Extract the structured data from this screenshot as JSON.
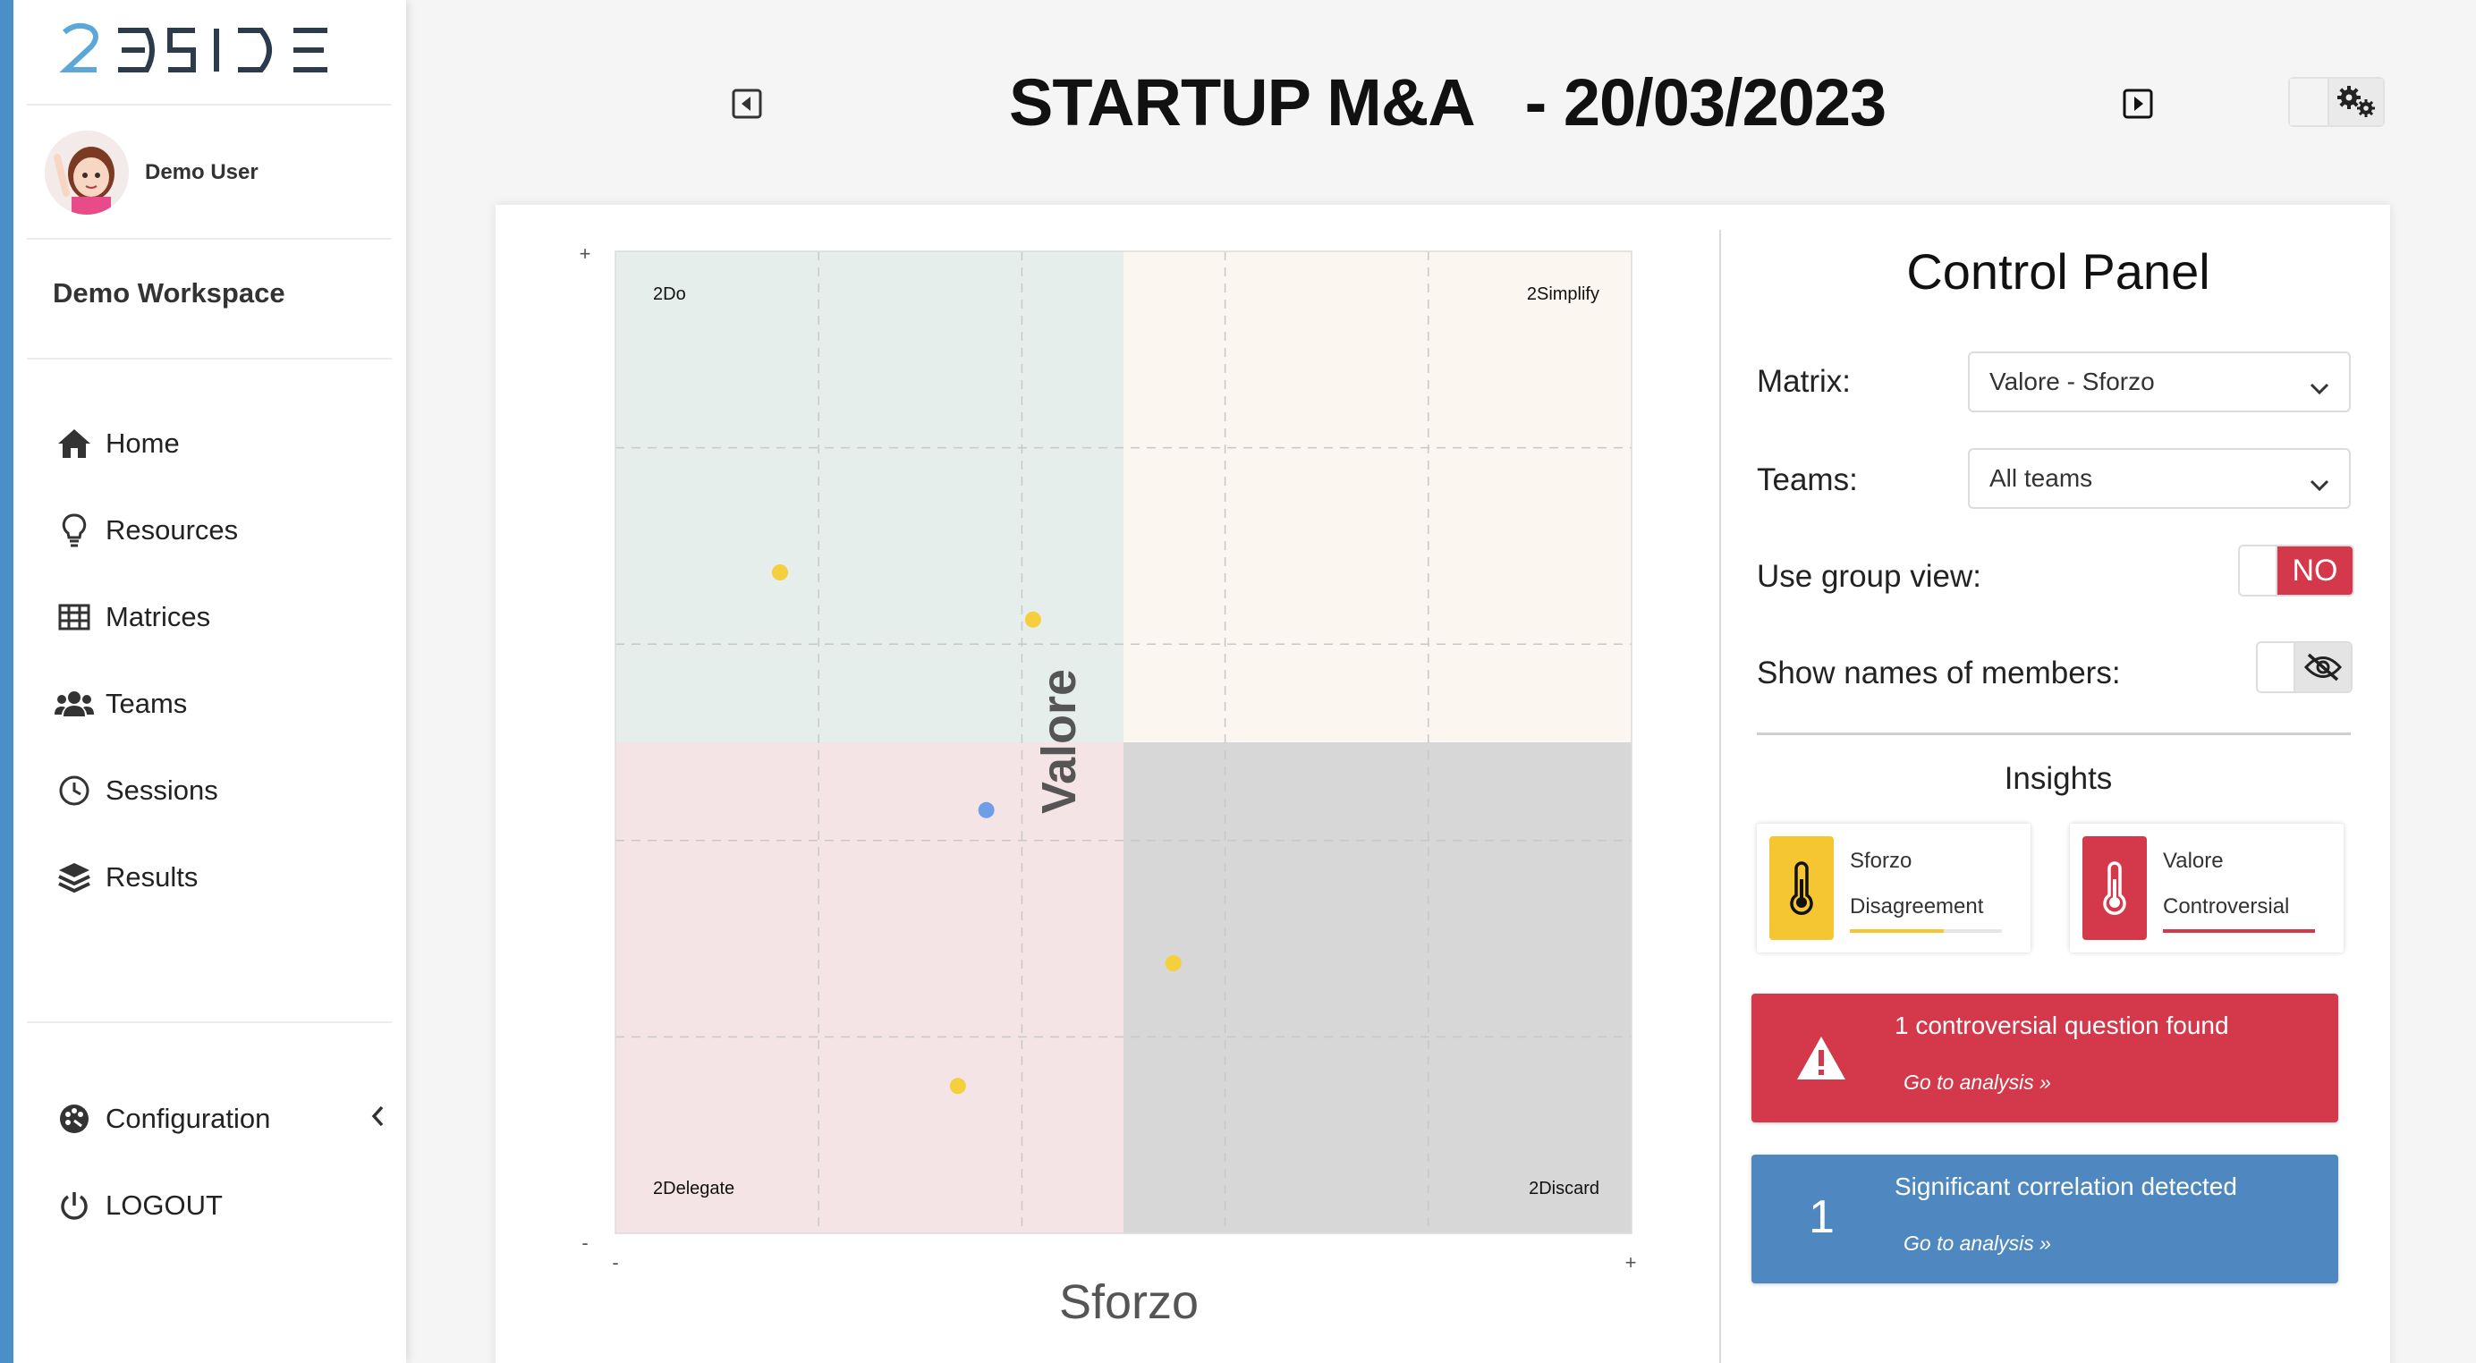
{
  "app": {
    "logo_text": "2DSIDE",
    "user_name": "Demo User",
    "workspace": "Demo Workspace"
  },
  "nav": {
    "items": [
      {
        "label": "Home",
        "icon": "home-icon"
      },
      {
        "label": "Resources",
        "icon": "lightbulb-icon"
      },
      {
        "label": "Matrices",
        "icon": "table-icon"
      },
      {
        "label": "Teams",
        "icon": "users-icon"
      },
      {
        "label": "Sessions",
        "icon": "clock-icon"
      },
      {
        "label": "Results",
        "icon": "layers-icon"
      }
    ],
    "configuration": "Configuration",
    "logout": "LOGOUT"
  },
  "header": {
    "title": "STARTUP M&A   - 20/03/2023"
  },
  "chart_data": {
    "type": "scatter",
    "xlabel": "Sforzo",
    "ylabel": "Valore",
    "x_min_label": "-",
    "x_max_label": "+",
    "y_min_label": "-",
    "y_max_label": "+",
    "xlim": [
      0,
      1
    ],
    "ylim": [
      0,
      1
    ],
    "grid": true,
    "quadrants": [
      {
        "label": "2Do",
        "position": "top-left",
        "color": "#e5eeeb"
      },
      {
        "label": "2Simplify",
        "position": "top-right",
        "color": "#fbf6f0"
      },
      {
        "label": "2Delegate",
        "position": "bottom-left",
        "color": "#f5e4e6"
      },
      {
        "label": "2Discard",
        "position": "bottom-right",
        "color": "#d7d7d7"
      }
    ],
    "points": [
      {
        "x": 0.162,
        "y": 0.673,
        "color": "#f5cf3c"
      },
      {
        "x": 0.411,
        "y": 0.625,
        "color": "#f5cf3c"
      },
      {
        "x": 0.365,
        "y": 0.431,
        "color": "#6f9ee6"
      },
      {
        "x": 0.549,
        "y": 0.275,
        "color": "#f5cf3c"
      },
      {
        "x": 0.337,
        "y": 0.15,
        "color": "#f5cf3c"
      }
    ]
  },
  "control_panel": {
    "title": "Control Panel",
    "matrix_label": "Matrix:",
    "matrix_value": "Valore - Sforzo",
    "teams_label": "Teams:",
    "teams_value": "All teams",
    "group_view_label": "Use group view:",
    "group_view_state": "NO",
    "show_names_label": "Show names of members:",
    "insights_title": "Insights",
    "insight_cards": [
      {
        "title": "Sforzo",
        "subtitle": "Disagreement",
        "color": "#f6c532",
        "level": 0.62
      },
      {
        "title": "Valore",
        "subtitle": "Controversial",
        "color": "#d3394a",
        "level": 1.0
      }
    ],
    "alert_controversial": {
      "message": "1 controversial question found",
      "link": "Go to analysis",
      "color": "#d3394a"
    },
    "alert_correlation": {
      "count": "1",
      "message": "Significant correlation detected",
      "link": "Go to analysis",
      "color": "#4f88c1"
    }
  }
}
